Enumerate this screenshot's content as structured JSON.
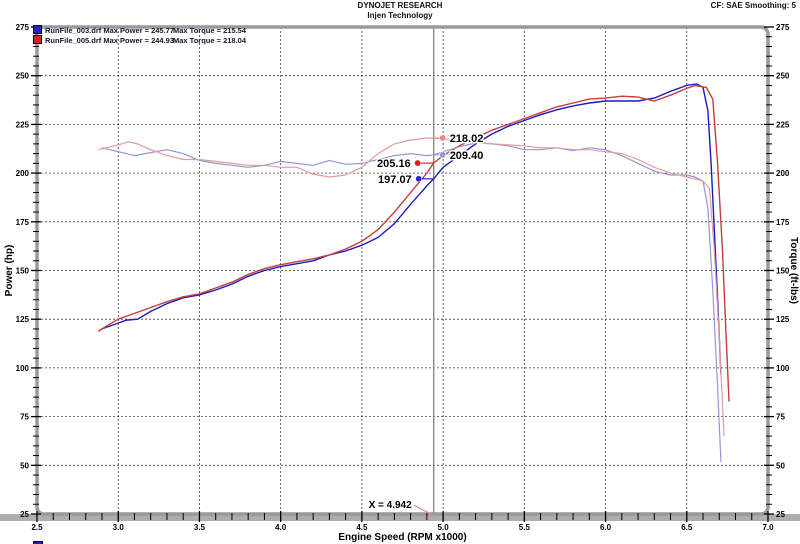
{
  "header": {
    "title": "DYNOJET RESEARCH",
    "subtitle": "Injen Technology",
    "right": "CF: SAE  Smoothing: 5"
  },
  "legend": {
    "rows": [
      {
        "swatch": "#2222cc",
        "text1": "RunFile_003.drf Max Power = 245.77",
        "text2": "Max Torque = 215.54"
      },
      {
        "swatch": "#cc2222",
        "text1": "RunFile_005.drf Max Power = 244.93",
        "text2": "Max Torque = 218.04"
      }
    ],
    "cutoff_swatch": "#2222cc"
  },
  "chart_data": {
    "type": "line",
    "xlabel": "Engine Speed (RPM x1000)",
    "ylabel_left": "Power (hp)",
    "ylabel_right": "Torque (ft-lbs)",
    "xlim": [
      2.5,
      7.0
    ],
    "ylim": [
      25,
      275
    ],
    "x_major": 0.5,
    "x_minor": 0.1,
    "y_major": 25,
    "y_minor": 5,
    "grid": "dashed",
    "colors": {
      "grid": "#3e3e3e",
      "frame": "#9a9a9a",
      "bottom_bar": "#aeaeae",
      "cursor": "#8a8a8a",
      "pointer": "#e08a8a"
    },
    "series": [
      {
        "name": "RunFile_003 Power (hp)",
        "color": "#1c1cbe",
        "width": 1.4,
        "points": [
          [
            2.9,
            120
          ],
          [
            3.0,
            123
          ],
          [
            3.05,
            124.5
          ],
          [
            3.12,
            125
          ],
          [
            3.2,
            129
          ],
          [
            3.3,
            133
          ],
          [
            3.4,
            136
          ],
          [
            3.5,
            137.5
          ],
          [
            3.6,
            140
          ],
          [
            3.7,
            143
          ],
          [
            3.8,
            147
          ],
          [
            3.9,
            150
          ],
          [
            4.0,
            152
          ],
          [
            4.1,
            153.5
          ],
          [
            4.2,
            155
          ],
          [
            4.3,
            158
          ],
          [
            4.4,
            160
          ],
          [
            4.5,
            163
          ],
          [
            4.6,
            167
          ],
          [
            4.7,
            174
          ],
          [
            4.8,
            184
          ],
          [
            4.9,
            193.5
          ],
          [
            4.942,
            197.07
          ],
          [
            5.0,
            203
          ],
          [
            5.1,
            209
          ],
          [
            5.2,
            215
          ],
          [
            5.3,
            220
          ],
          [
            5.4,
            224
          ],
          [
            5.5,
            227
          ],
          [
            5.6,
            230
          ],
          [
            5.7,
            232.5
          ],
          [
            5.8,
            234.5
          ],
          [
            5.9,
            236
          ],
          [
            6.0,
            237
          ],
          [
            6.1,
            237
          ],
          [
            6.2,
            237
          ],
          [
            6.3,
            238.5
          ],
          [
            6.4,
            242
          ],
          [
            6.5,
            245
          ],
          [
            6.56,
            245.77
          ],
          [
            6.6,
            244
          ],
          [
            6.63,
            232
          ],
          [
            6.65,
            205
          ],
          [
            6.67,
            170
          ],
          [
            6.69,
            135
          ],
          [
            6.71,
            97
          ]
        ]
      },
      {
        "name": "RunFile_005 Power (hp)",
        "color": "#c63c3c",
        "width": 1.4,
        "points": [
          [
            2.88,
            119
          ],
          [
            3.0,
            125
          ],
          [
            3.1,
            128
          ],
          [
            3.2,
            131
          ],
          [
            3.3,
            134
          ],
          [
            3.4,
            136.5
          ],
          [
            3.5,
            138
          ],
          [
            3.6,
            141
          ],
          [
            3.7,
            144
          ],
          [
            3.8,
            148
          ],
          [
            3.9,
            151
          ],
          [
            4.0,
            153
          ],
          [
            4.1,
            154.5
          ],
          [
            4.2,
            156
          ],
          [
            4.3,
            158
          ],
          [
            4.4,
            161
          ],
          [
            4.5,
            165
          ],
          [
            4.6,
            171
          ],
          [
            4.7,
            180
          ],
          [
            4.8,
            190
          ],
          [
            4.9,
            200
          ],
          [
            4.942,
            205.16
          ],
          [
            5.0,
            209
          ],
          [
            5.1,
            214
          ],
          [
            5.2,
            218
          ],
          [
            5.3,
            222
          ],
          [
            5.4,
            225
          ],
          [
            5.5,
            228
          ],
          [
            5.6,
            231
          ],
          [
            5.7,
            234
          ],
          [
            5.8,
            236
          ],
          [
            5.9,
            238
          ],
          [
            6.0,
            238.5
          ],
          [
            6.1,
            239.5
          ],
          [
            6.2,
            239
          ],
          [
            6.3,
            237
          ],
          [
            6.4,
            240
          ],
          [
            6.5,
            243.5
          ],
          [
            6.55,
            244.93
          ],
          [
            6.62,
            244
          ],
          [
            6.66,
            238
          ],
          [
            6.69,
            205
          ],
          [
            6.72,
            160
          ],
          [
            6.74,
            120
          ],
          [
            6.76,
            83
          ]
        ]
      },
      {
        "name": "RunFile_003 Torque (ft-lbs)",
        "color": "#9595d9",
        "width": 1.2,
        "points": [
          [
            2.9,
            213
          ],
          [
            3.0,
            211
          ],
          [
            3.1,
            209
          ],
          [
            3.2,
            210.5
          ],
          [
            3.3,
            212
          ],
          [
            3.4,
            210
          ],
          [
            3.5,
            206.5
          ],
          [
            3.6,
            205
          ],
          [
            3.7,
            204
          ],
          [
            3.8,
            203
          ],
          [
            3.9,
            204
          ],
          [
            4.0,
            206
          ],
          [
            4.1,
            205
          ],
          [
            4.2,
            204
          ],
          [
            4.3,
            206.5
          ],
          [
            4.4,
            204.5
          ],
          [
            4.5,
            205
          ],
          [
            4.6,
            207
          ],
          [
            4.7,
            209
          ],
          [
            4.8,
            210
          ],
          [
            4.9,
            209
          ],
          [
            4.942,
            209.4
          ],
          [
            5.0,
            211
          ],
          [
            5.1,
            213.5
          ],
          [
            5.2,
            215.54
          ],
          [
            5.3,
            215
          ],
          [
            5.4,
            214
          ],
          [
            5.5,
            212
          ],
          [
            5.6,
            212
          ],
          [
            5.7,
            213
          ],
          [
            5.8,
            211.5
          ],
          [
            5.9,
            213
          ],
          [
            6.0,
            212
          ],
          [
            6.1,
            209
          ],
          [
            6.2,
            205
          ],
          [
            6.3,
            201
          ],
          [
            6.4,
            199
          ],
          [
            6.5,
            199
          ],
          [
            6.55,
            198
          ],
          [
            6.6,
            196
          ],
          [
            6.63,
            182
          ],
          [
            6.66,
            140
          ],
          [
            6.69,
            90
          ],
          [
            6.71,
            52
          ]
        ]
      },
      {
        "name": "RunFile_005 Torque (ft-lbs)",
        "color": "#e59b9b",
        "width": 1.2,
        "points": [
          [
            2.88,
            212
          ],
          [
            3.0,
            214.5
          ],
          [
            3.06,
            216
          ],
          [
            3.12,
            215
          ],
          [
            3.2,
            212
          ],
          [
            3.3,
            209
          ],
          [
            3.4,
            207
          ],
          [
            3.5,
            207
          ],
          [
            3.6,
            206
          ],
          [
            3.7,
            205
          ],
          [
            3.8,
            204
          ],
          [
            3.9,
            204
          ],
          [
            4.0,
            203
          ],
          [
            4.1,
            203
          ],
          [
            4.2,
            199.5
          ],
          [
            4.3,
            198
          ],
          [
            4.4,
            199
          ],
          [
            4.5,
            203
          ],
          [
            4.6,
            210
          ],
          [
            4.7,
            215
          ],
          [
            4.8,
            217
          ],
          [
            4.9,
            218.04
          ],
          [
            4.942,
            218.02
          ],
          [
            5.0,
            217.5
          ],
          [
            5.1,
            216
          ],
          [
            5.2,
            216
          ],
          [
            5.3,
            215
          ],
          [
            5.4,
            214.5
          ],
          [
            5.5,
            214
          ],
          [
            5.6,
            213
          ],
          [
            5.7,
            213
          ],
          [
            5.8,
            212
          ],
          [
            5.9,
            212
          ],
          [
            6.0,
            211
          ],
          [
            6.1,
            210
          ],
          [
            6.2,
            207
          ],
          [
            6.3,
            203
          ],
          [
            6.4,
            200
          ],
          [
            6.5,
            198
          ],
          [
            6.6,
            196
          ],
          [
            6.64,
            192
          ],
          [
            6.67,
            160
          ],
          [
            6.7,
            115
          ],
          [
            6.73,
            65
          ]
        ]
      }
    ],
    "cursor": {
      "x": 4.942,
      "label": "X = 4.942"
    },
    "annotations": [
      {
        "label": "218.02",
        "value": 218.02,
        "dx": 9,
        "side": "right",
        "color": "#ef8585"
      },
      {
        "label": "209.40",
        "value": 209.4,
        "dx": 9,
        "side": "right",
        "color": "#9595e0"
      },
      {
        "label": "205.16",
        "value": 205.16,
        "dx": -16,
        "side": "left",
        "color": "#e01818"
      },
      {
        "label": "197.07",
        "value": 197.07,
        "dx": -15,
        "side": "left",
        "color": "#2828d0"
      }
    ]
  }
}
